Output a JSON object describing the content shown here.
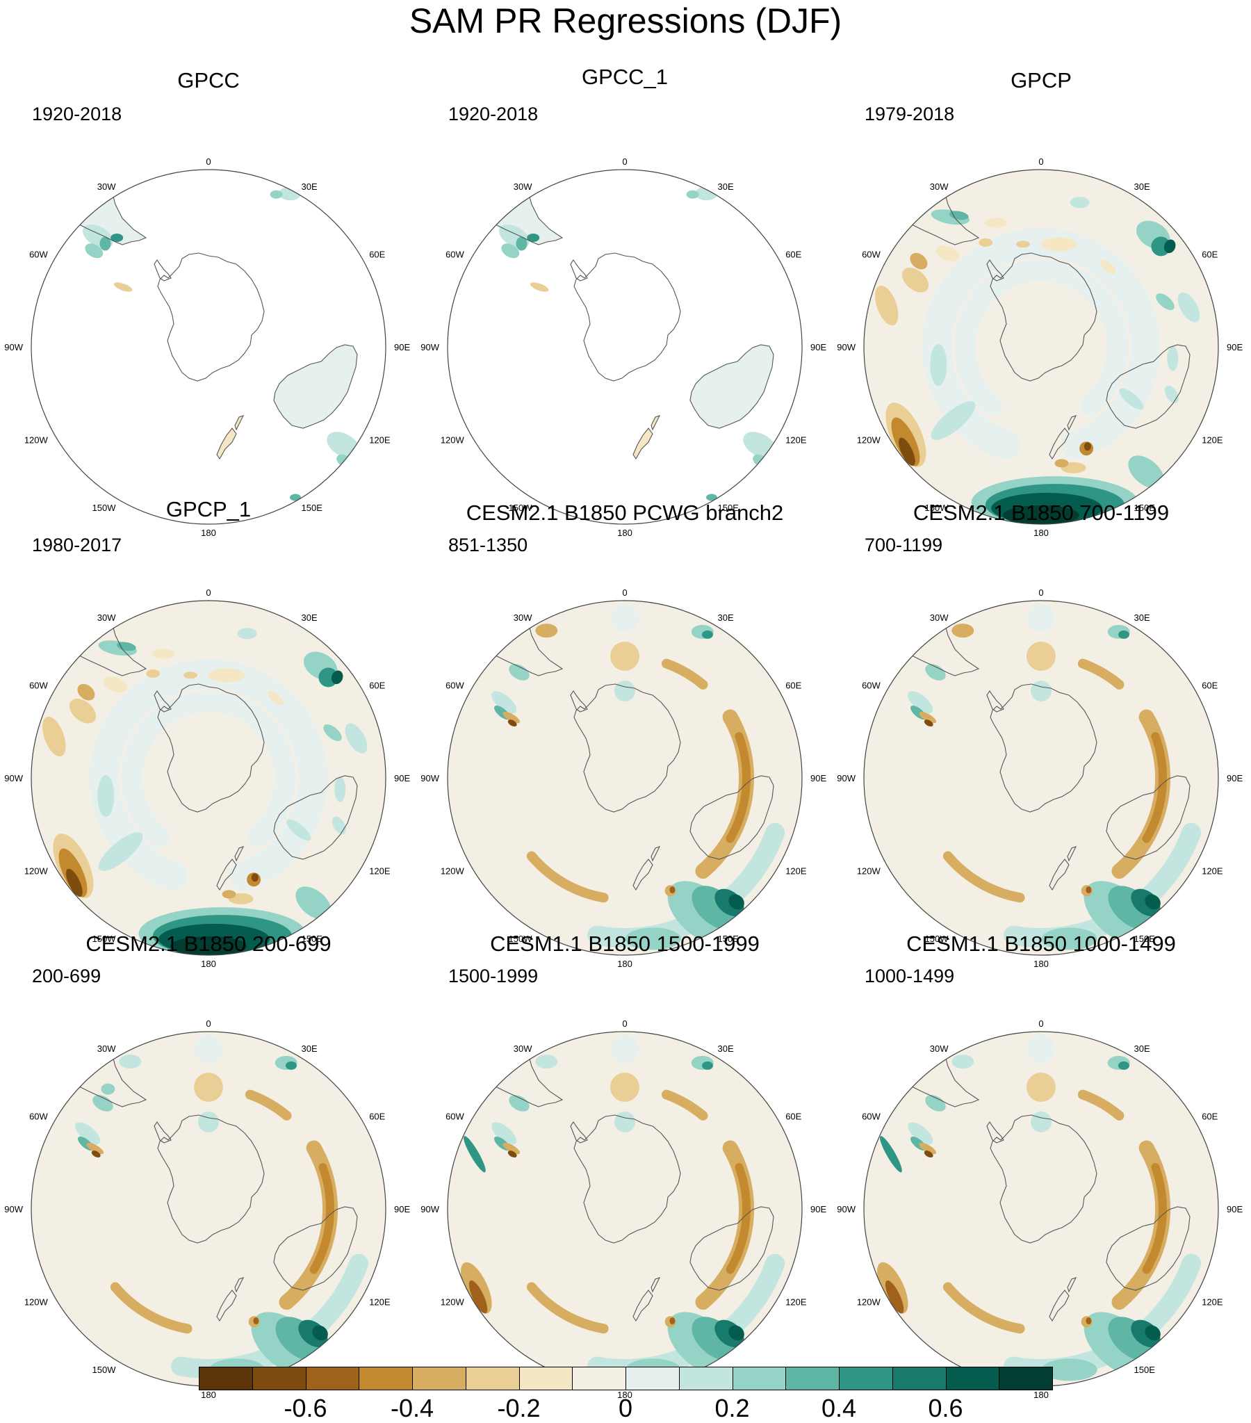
{
  "title": "SAM PR Regressions (DJF)",
  "longitude_labels": {
    "lon_0": "0",
    "lon_30e": "30E",
    "lon_60e": "60E",
    "lon_90e": "90E",
    "lon_120e": "120E",
    "lon_150e": "150E",
    "lon_180": "180",
    "lon_150w": "150W",
    "lon_120w": "120W",
    "lon_90w": "90W",
    "lon_60w": "60W",
    "lon_30w": "30W"
  },
  "panels": [
    {
      "title": "GPCC",
      "period": "1920-2018",
      "coverage": "land"
    },
    {
      "title": "GPCC_1",
      "period": "1920-2018",
      "coverage": "land"
    },
    {
      "title": "GPCP",
      "period": "1979-2018",
      "coverage": "global"
    },
    {
      "title": "GPCP_1",
      "period": "1980-2017",
      "coverage": "global"
    },
    {
      "title": "CESM2.1 B1850 PCWG branch2",
      "period": "851-1350",
      "coverage": "global"
    },
    {
      "title": "CESM2.1 B1850 700-1199",
      "period": "700-1199",
      "coverage": "global"
    },
    {
      "title": "CESM2.1 B1850 200-699",
      "period": "200-699",
      "coverage": "global"
    },
    {
      "title": "CESM1.1 B1850 1500-1999",
      "period": "1500-1999",
      "coverage": "global"
    },
    {
      "title": "CESM1.1 B1850 1000-1499",
      "period": "1000-1499",
      "coverage": "global"
    }
  ],
  "colorbar": {
    "colors": [
      "#5c3608",
      "#7d4c0e",
      "#a0621a",
      "#c3892f",
      "#d7ad62",
      "#e9cf95",
      "#f5e6c4",
      "#f4efe4",
      "#e5f0ef",
      "#c2e6df",
      "#94d3c6",
      "#5fb6a4",
      "#2f9686",
      "#177a6c",
      "#035c4e",
      "#013d31"
    ],
    "labels": [
      "-0.6",
      "-0.4",
      "-0.2",
      "0",
      "0.2",
      "0.4",
      "0.6"
    ]
  }
}
